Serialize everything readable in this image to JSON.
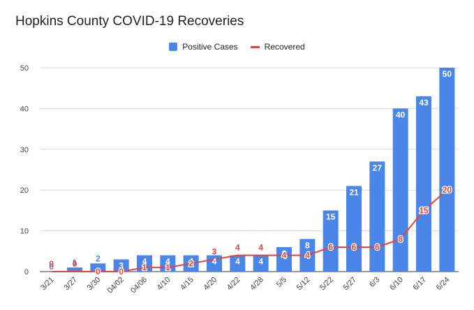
{
  "chart_data": {
    "type": "bar",
    "title": "Hopkins County COVID-19 Recoveries",
    "categories": [
      "3/21",
      "3/27",
      "3/30",
      "04/02",
      "04/06",
      "4/10",
      "4/15",
      "4/20",
      "4/22",
      "4/28",
      "5/5",
      "5/12",
      "5/22",
      "5/27",
      "6/3",
      "6/10",
      "6/17",
      "6/24"
    ],
    "series": [
      {
        "name": "Positive Cases",
        "kind": "bar",
        "color": "#4a86e8",
        "values": [
          0,
          1,
          2,
          3,
          4,
          4,
          4,
          4,
          4,
          4,
          6,
          8,
          15,
          21,
          27,
          40,
          43,
          50
        ]
      },
      {
        "name": "Recovered",
        "kind": "line",
        "color": "#e3453d",
        "values": [
          0,
          0,
          0,
          0,
          1,
          1,
          2,
          3,
          4,
          4,
          4,
          4,
          6,
          6,
          6,
          8,
          15,
          20
        ]
      }
    ],
    "ylim": [
      0,
      50
    ],
    "yticks": [
      0,
      10,
      20,
      30,
      40,
      50
    ],
    "grid": true,
    "legend_position": "top",
    "xlabel": "",
    "ylabel": ""
  }
}
